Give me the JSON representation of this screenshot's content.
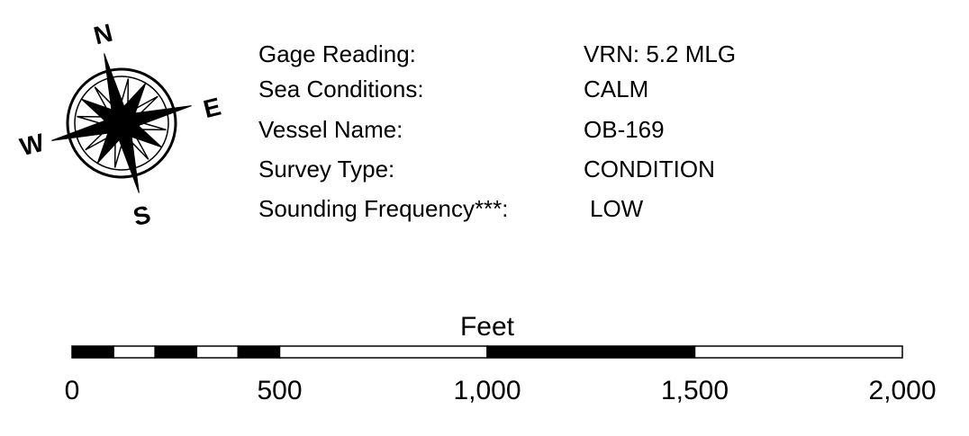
{
  "compass": {
    "north": "N",
    "east": "E",
    "south": "S",
    "west": "W"
  },
  "info": [
    {
      "label": "Gage Reading:",
      "value": "VRN: 5.2 MLG"
    },
    {
      "label": "Sea Conditions:",
      "value": "CALM"
    },
    {
      "label": "Vessel Name:",
      "value": "OB-169"
    },
    {
      "label": "Survey Type:",
      "value": "CONDITION"
    },
    {
      "label": "Sounding Frequency***:",
      "value": "LOW"
    }
  ],
  "scale": {
    "title": "Feet",
    "range": [
      0,
      2000
    ],
    "divisions": [
      0,
      100,
      200,
      300,
      400,
      500,
      1000,
      1500,
      2000
    ],
    "ticks": [
      0,
      500,
      {
        "value": 1000,
        "label": "1,000"
      },
      {
        "value": 1500,
        "label": "1,500"
      },
      {
        "value": 2000,
        "label": "2,000"
      }
    ]
  }
}
